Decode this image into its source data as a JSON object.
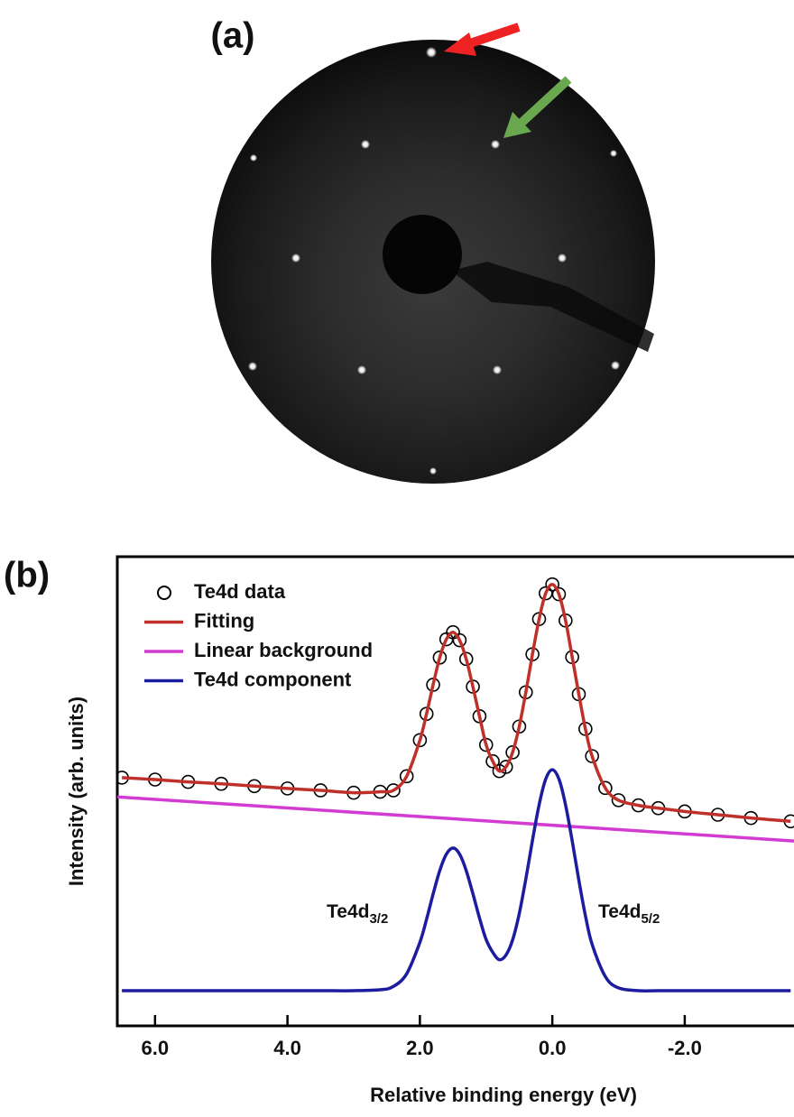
{
  "panel_a": {
    "label": "(a)"
  },
  "chart_data": {
    "type": "line",
    "panel_label": "(b)",
    "x_label": "Relative binding energy (eV)",
    "y_label": "Intensity (arb. units)",
    "xlim": [
      6.57,
      -3.65
    ],
    "ylim": [
      0,
      100
    ],
    "xticks": [
      {
        "value": 6,
        "label": "6.0"
      },
      {
        "value": 4,
        "label": "4.0"
      },
      {
        "value": 2,
        "label": "2.0"
      },
      {
        "value": 0,
        "label": "0.0"
      },
      {
        "value": -2,
        "label": "-2.0"
      }
    ],
    "legend": "upper left",
    "x": [
      6.5,
      6.0,
      5.5,
      5.0,
      4.5,
      4.0,
      3.5,
      3.0,
      2.6,
      2.4,
      2.2,
      2.0,
      1.9,
      1.8,
      1.7,
      1.6,
      1.5,
      1.4,
      1.3,
      1.2,
      1.1,
      1.0,
      0.9,
      0.8,
      0.7,
      0.6,
      0.5,
      0.4,
      0.3,
      0.2,
      0.1,
      0.0,
      -0.1,
      -0.2,
      -0.3,
      -0.4,
      -0.5,
      -0.6,
      -0.8,
      -1.0,
      -1.3,
      -1.6,
      -2.0,
      -2.5,
      -3.0,
      -3.6
    ],
    "series": [
      {
        "name": "Te4d data",
        "color": "#000000",
        "marker": "open-circle",
        "values": [
          52.9,
          52.5,
          52.0,
          51.6,
          51.1,
          50.6,
          50.2,
          49.7,
          49.9,
          50.2,
          53.2,
          60.9,
          66.5,
          72.7,
          78.5,
          82.4,
          83.9,
          82.2,
          78.2,
          72.3,
          66.0,
          59.9,
          56.4,
          54.3,
          55.2,
          58.3,
          63.8,
          71.1,
          79.2,
          86.7,
          92.2,
          94.1,
          92.0,
          86.4,
          78.6,
          70.7,
          63.3,
          57.5,
          50.7,
          48.1,
          47.0,
          46.4,
          45.7,
          45.0,
          44.3,
          43.6
        ]
      },
      {
        "name": "Fitting",
        "color": "#c0302a",
        "values": [
          52.9,
          52.5,
          52.0,
          51.6,
          51.1,
          50.6,
          50.2,
          49.7,
          49.9,
          50.2,
          53.2,
          60.9,
          66.5,
          72.7,
          78.5,
          82.4,
          83.9,
          82.2,
          78.2,
          72.3,
          66.0,
          59.9,
          56.4,
          54.3,
          55.2,
          58.3,
          63.8,
          71.1,
          79.2,
          86.7,
          92.2,
          94.1,
          92.0,
          86.4,
          78.6,
          70.7,
          63.3,
          57.5,
          50.7,
          48.1,
          47.0,
          46.4,
          45.7,
          45.0,
          44.3,
          43.6
        ]
      },
      {
        "name": "Linear background",
        "color": "#d23cd2",
        "x": [
          6.57,
          -3.65
        ],
        "values": [
          48.8,
          39.4
        ]
      },
      {
        "name": "Te4d component",
        "color": "#1c1ca0",
        "values": [
          7.5,
          7.5,
          7.5,
          7.5,
          7.5,
          7.5,
          7.5,
          7.5,
          7.7,
          8.4,
          11.1,
          17.8,
          22.7,
          28.1,
          33.1,
          36.6,
          37.9,
          36.6,
          33.1,
          28.2,
          23.0,
          18.4,
          15.7,
          14.1,
          15.1,
          18.3,
          23.9,
          31.3,
          39.5,
          47.1,
          52.6,
          54.6,
          52.6,
          47.1,
          39.4,
          31.1,
          23.5,
          17.4,
          10.5,
          8.1,
          7.5,
          7.5,
          7.5,
          7.5,
          7.5,
          7.5
        ]
      }
    ],
    "annotations": [
      {
        "text": "Te4d",
        "sub": "3/2"
      },
      {
        "text": "Te4d",
        "sub": "5/2"
      }
    ]
  }
}
